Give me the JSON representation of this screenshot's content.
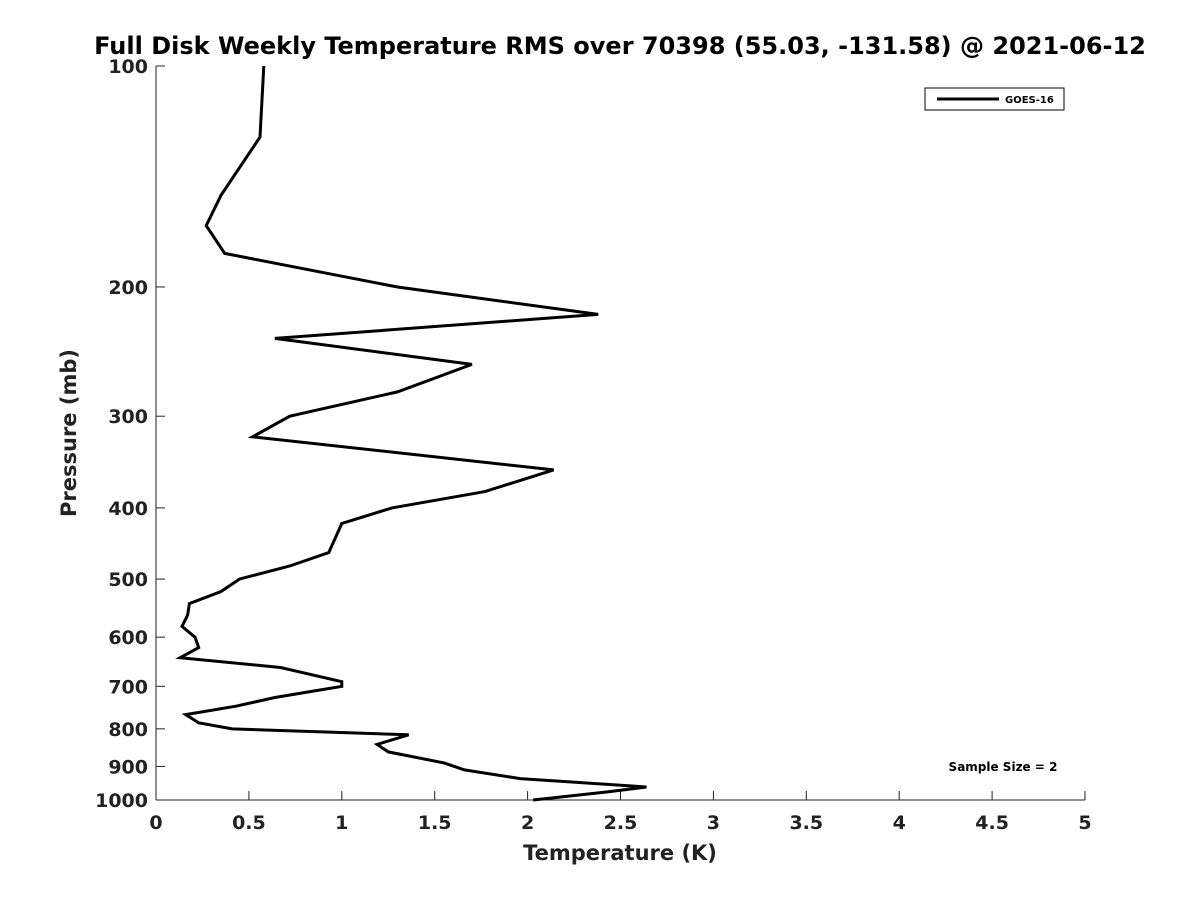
{
  "chart_data": {
    "type": "line",
    "title": "Full Disk Weekly Temperature RMS over 70398 (55.03, -131.58) @ 2021-06-12",
    "xlabel": "Temperature (K)",
    "ylabel": "Pressure (mb)",
    "xlim": [
      0,
      5
    ],
    "ylim": [
      100,
      1000
    ],
    "y_scale": "log",
    "y_reversed": true,
    "grid": false,
    "legend_position": "top-right",
    "x_ticks": [
      "0",
      "0.5",
      "1",
      "1.5",
      "2",
      "2.5",
      "3",
      "3.5",
      "4",
      "4.5",
      "5"
    ],
    "y_ticks": [
      "100",
      "200",
      "300",
      "400",
      "500",
      "600",
      "700",
      "800",
      "900",
      "1000"
    ],
    "series": [
      {
        "name": "GOES-16",
        "color": "#000000",
        "points": [
          [
            0.58,
            100
          ],
          [
            0.56,
            125
          ],
          [
            0.35,
            150
          ],
          [
            0.27,
            165
          ],
          [
            0.37,
            180
          ],
          [
            1.3,
            200
          ],
          [
            2.38,
            218
          ],
          [
            0.64,
            235
          ],
          [
            1.7,
            255
          ],
          [
            1.3,
            278
          ],
          [
            0.72,
            300
          ],
          [
            0.52,
            320
          ],
          [
            2.14,
            355
          ],
          [
            1.77,
            380
          ],
          [
            1.27,
            400
          ],
          [
            1.0,
            420
          ],
          [
            0.93,
            460
          ],
          [
            0.72,
            480
          ],
          [
            0.45,
            500
          ],
          [
            0.35,
            520
          ],
          [
            0.18,
            540
          ],
          [
            0.17,
            560
          ],
          [
            0.14,
            580
          ],
          [
            0.21,
            600
          ],
          [
            0.23,
            620
          ],
          [
            0.13,
            640
          ],
          [
            0.67,
            660
          ],
          [
            1.0,
            690
          ],
          [
            1.0,
            700
          ],
          [
            0.64,
            725
          ],
          [
            0.43,
            745
          ],
          [
            0.16,
            765
          ],
          [
            0.23,
            785
          ],
          [
            0.41,
            800
          ],
          [
            1.36,
            815
          ],
          [
            1.19,
            840
          ],
          [
            1.25,
            860
          ],
          [
            1.55,
            890
          ],
          [
            1.66,
            910
          ],
          [
            1.96,
            935
          ],
          [
            2.64,
            960
          ],
          [
            2.43,
            975
          ],
          [
            2.03,
            1000
          ]
        ]
      }
    ],
    "annotation": "Sample Size = 2"
  }
}
